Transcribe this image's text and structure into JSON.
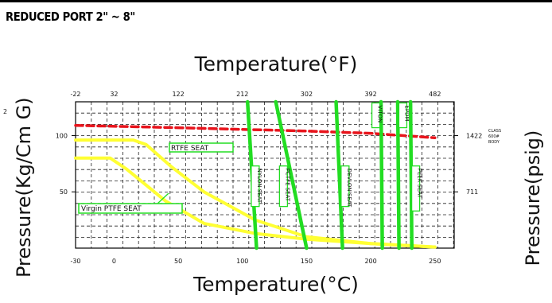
{
  "header": {
    "section_title": "REDUCED PORT 2\" ~ 8\""
  },
  "chart_data": {
    "type": "line",
    "title_top": "Temperature(°F)",
    "xlabel": "Temperature(°C)",
    "ylabel_left": "Pressure(Kg/Cm G)",
    "ylabel_left_superscript": "2",
    "ylabel_right": "Pressure(psig)",
    "xlim": [
      -30,
      265
    ],
    "ylim": [
      0,
      130
    ],
    "grid": true,
    "x_ticks_c": [
      "-30",
      "0",
      "50",
      "100",
      "150",
      "200",
      "250"
    ],
    "x_ticks_c_values": [
      -30,
      0,
      50,
      100,
      150,
      200,
      250
    ],
    "x_ticks_f": [
      "-22",
      "32",
      "122",
      "212",
      "302",
      "392",
      "482"
    ],
    "x_ticks_f_values": [
      -30,
      0,
      50,
      100,
      150,
      200,
      250
    ],
    "y_ticks_left": [
      "100",
      "50"
    ],
    "y_ticks_left_values": [
      100,
      50
    ],
    "y_ticks_right": [
      "1422",
      "711"
    ],
    "y_ticks_right_values": [
      100,
      50
    ],
    "class_annotation": [
      "CLASS",
      "600#",
      "BODY"
    ],
    "series": [
      {
        "name": "RTFE SEAT",
        "color": "#ffff33",
        "points": [
          [
            -30,
            96
          ],
          [
            15,
            96
          ],
          [
            25,
            92
          ],
          [
            45,
            72
          ],
          [
            70,
            50
          ],
          [
            110,
            25
          ],
          [
            150,
            10
          ],
          [
            200,
            4
          ],
          [
            250,
            1
          ]
        ]
      },
      {
        "name": "Virgin PTFE SEAT",
        "color": "#ffff33",
        "points": [
          [
            -30,
            80
          ],
          [
            -3,
            80
          ],
          [
            10,
            70
          ],
          [
            40,
            42
          ],
          [
            70,
            22
          ],
          [
            110,
            13
          ],
          [
            150,
            8
          ],
          [
            200,
            4
          ],
          [
            250,
            1
          ]
        ]
      },
      {
        "name": "CLASS 600# BODY",
        "color": "#e8141c",
        "points": [
          [
            -30,
            109
          ],
          [
            50,
            107
          ],
          [
            150,
            104
          ],
          [
            200,
            102
          ],
          [
            250,
            98
          ]
        ]
      }
    ],
    "seat_limits": [
      {
        "label": "NYLON SEAT",
        "color": "#22dd22",
        "x_top": 104,
        "x_bottom": 111,
        "label_x": 110,
        "label_y": 73,
        "label_h": 36
      },
      {
        "label": "PCTFE SEAT",
        "color": "#22dd22",
        "x_top": 126,
        "x_bottom": 150,
        "label_x": 132,
        "label_y": 73,
        "label_h": 36
      },
      {
        "label": "DEVLON SEAT",
        "color": "#22dd22",
        "x_top": 173,
        "x_bottom": 178,
        "label_x": 180,
        "label_y": 73,
        "label_h": 36
      },
      {
        "label": "VITON",
        "color": "#22dd22",
        "x_top": 208,
        "x_bottom": 209,
        "label_x": 204,
        "label_y": 129,
        "label_h": 22
      },
      {
        "label": "EPDM",
        "color": "#22dd22",
        "x_top": 221,
        "x_bottom": 222,
        "label_x": 225,
        "label_y": 129,
        "label_h": 22
      },
      {
        "label": "PEEK SEAT",
        "color": "#22dd22",
        "x_top": 231,
        "x_bottom": 232,
        "label_x": 235,
        "label_y": 73,
        "label_h": 40
      }
    ],
    "series_labels": [
      {
        "label": "RTFE SEAT",
        "color": "#22dd22"
      },
      {
        "label": "Virgin PTFE SEAT",
        "color": "#22dd22"
      }
    ]
  }
}
